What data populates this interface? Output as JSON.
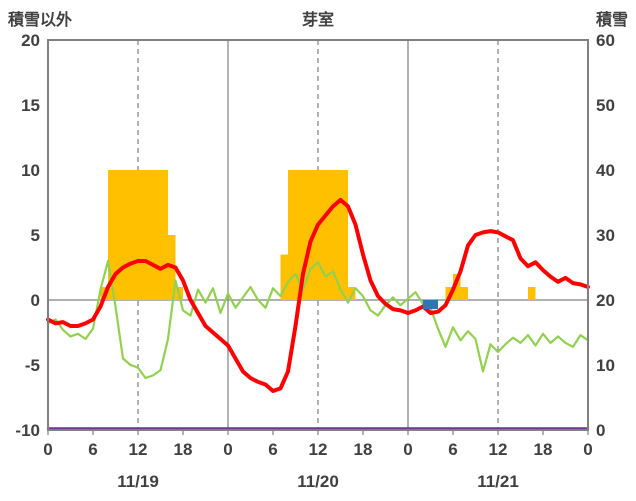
{
  "chart_data": {
    "type": "line",
    "title": "芽室",
    "left_axis_label": "積雪以外",
    "right_axis_label": "積雪",
    "left_ylim": [
      -10,
      20
    ],
    "right_ylim": [
      0,
      60
    ],
    "left_ticks": [
      20,
      15,
      10,
      5,
      0,
      -5,
      -10
    ],
    "right_ticks": [
      60,
      50,
      40,
      30,
      20,
      10,
      0
    ],
    "x_hours_total": 72,
    "x_tick_hours": [
      0,
      6,
      12,
      18,
      24,
      30,
      36,
      42,
      48,
      54,
      60,
      66,
      72
    ],
    "x_tick_labels": [
      "0",
      "6",
      "12",
      "18",
      "0",
      "6",
      "12",
      "18",
      "0",
      "6",
      "12",
      "18",
      "0"
    ],
    "date_labels": [
      "11/19",
      "11/20",
      "11/21"
    ],
    "grid": {
      "day_lines": [
        24,
        48
      ],
      "noon_lines": [
        12,
        36,
        60
      ]
    },
    "grid_color": "#808080",
    "text_color": "#404040",
    "series": [
      {
        "name": "yellow-bars",
        "type": "bar",
        "axis": "left",
        "color": "#ffc000",
        "values": [
          0,
          0,
          0,
          0,
          0,
          0,
          0,
          1,
          10,
          10,
          10,
          10,
          10,
          10,
          10,
          10,
          5,
          1,
          0,
          0,
          0,
          0,
          0,
          0,
          0,
          0,
          0,
          0,
          0,
          0,
          0,
          3.5,
          10,
          10,
          10,
          10,
          10,
          10,
          10,
          10,
          1,
          0,
          0,
          0,
          0,
          0,
          0,
          0,
          0,
          0,
          0,
          0,
          0,
          1,
          2,
          1,
          0,
          0,
          0,
          0,
          0,
          0,
          0,
          0,
          1,
          0,
          0,
          0,
          0,
          0,
          0,
          0
        ]
      },
      {
        "name": "green-line",
        "type": "line",
        "axis": "left",
        "color": "#92d050",
        "width": 2.2,
        "values": [
          -1.8,
          -1.5,
          -2.3,
          -2.8,
          -2.6,
          -3.0,
          -2.2,
          0.8,
          3.0,
          -0.5,
          -4.5,
          -5.0,
          -5.2,
          -6.0,
          -5.8,
          -5.4,
          -3.0,
          1.5,
          -0.8,
          -1.2,
          0.8,
          -0.2,
          0.9,
          -1.0,
          0.5,
          -0.6,
          0.2,
          1.0,
          0.0,
          -0.6,
          0.9,
          0.3,
          1.4,
          2.0,
          0.8,
          2.4,
          2.9,
          1.8,
          2.2,
          0.8,
          -0.2,
          0.9,
          0.3,
          -0.8,
          -1.2,
          -0.4,
          0.2,
          -0.4,
          0.1,
          0.6,
          -0.3,
          -0.6,
          -2.2,
          -3.6,
          -2.1,
          -3.1,
          -2.4,
          -3.0,
          -5.5,
          -3.4,
          -4.0,
          -3.4,
          -2.9,
          -3.3,
          -2.7,
          -3.5,
          -2.6,
          -3.3,
          -2.8,
          -3.3,
          -3.6,
          -2.7,
          -3.1
        ]
      },
      {
        "name": "red-line",
        "type": "line",
        "axis": "left",
        "color": "#ff0000",
        "width": 4,
        "values": [
          -1.5,
          -1.8,
          -1.7,
          -2.0,
          -2.0,
          -1.8,
          -1.5,
          -0.5,
          1.0,
          2.0,
          2.5,
          2.8,
          3.0,
          3.0,
          2.7,
          2.4,
          2.7,
          2.5,
          1.5,
          0.0,
          -1.0,
          -2.0,
          -2.5,
          -3.0,
          -3.5,
          -4.5,
          -5.5,
          -6.0,
          -6.3,
          -6.5,
          -7.0,
          -6.8,
          -5.5,
          -2.0,
          2.0,
          4.5,
          5.8,
          6.5,
          7.2,
          7.7,
          7.2,
          5.8,
          3.5,
          1.5,
          0.3,
          -0.3,
          -0.7,
          -0.8,
          -1.0,
          -0.8,
          -0.5,
          -1.0,
          -0.9,
          -0.4,
          0.8,
          2.2,
          4.2,
          5.0,
          5.2,
          5.3,
          5.2,
          4.9,
          4.6,
          3.2,
          2.6,
          2.9,
          2.3,
          1.8,
          1.4,
          1.7,
          1.3,
          1.2,
          1.0
        ]
      },
      {
        "name": "blue-bars",
        "type": "bar",
        "axis": "left",
        "color": "#2e75b6",
        "values": [
          0,
          0,
          0,
          0,
          0,
          0,
          0,
          0,
          0,
          0,
          0,
          0,
          0,
          0,
          0,
          0,
          0,
          0,
          0,
          0,
          0,
          0,
          0,
          0,
          0,
          0,
          0,
          0,
          0,
          0,
          0,
          0,
          0,
          0,
          0,
          0,
          0,
          0,
          0,
          0,
          0,
          0,
          0,
          0,
          0,
          0,
          0,
          0,
          0,
          0,
          -0.7,
          -0.7,
          0,
          0,
          0,
          0,
          0,
          0,
          0,
          0,
          0,
          0,
          0,
          0,
          0,
          0,
          0,
          0,
          0,
          0,
          0,
          0
        ]
      },
      {
        "name": "purple-line",
        "type": "line",
        "axis": "right",
        "color": "#7030a0",
        "width": 2.5,
        "constant": 0
      }
    ]
  }
}
